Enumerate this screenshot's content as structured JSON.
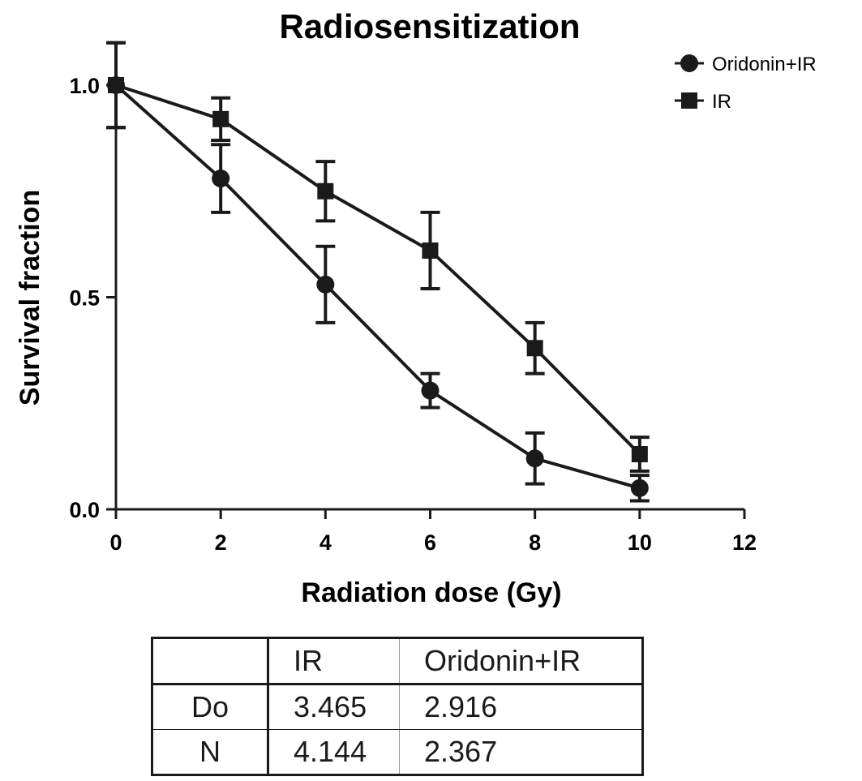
{
  "chart_data": {
    "type": "line",
    "title": "Radiosensitization",
    "xlabel": "Radiation dose (Gy)",
    "ylabel": "Survival fraction",
    "xlim": [
      0,
      12
    ],
    "ylim": [
      0,
      1
    ],
    "x_ticks": [
      "0",
      "2",
      "4",
      "6",
      "8",
      "10",
      "12"
    ],
    "y_ticks": [
      "0.0",
      "0.5",
      "1.0"
    ],
    "x_tick_values": [
      0,
      2,
      4,
      6,
      8,
      10,
      12
    ],
    "y_tick_values": [
      0,
      0.5,
      1
    ],
    "legend_position": "top-right",
    "grid": false,
    "series": [
      {
        "name": "Oridonin+IR",
        "marker": "circle",
        "color": "#1a1a1a",
        "x": [
          0,
          2,
          4,
          6,
          8,
          10
        ],
        "y": [
          1.0,
          0.78,
          0.53,
          0.28,
          0.12,
          0.05
        ],
        "error": [
          0.1,
          0.08,
          0.09,
          0.04,
          0.06,
          0.03
        ]
      },
      {
        "name": "IR",
        "marker": "square",
        "color": "#1a1a1a",
        "x": [
          0,
          2,
          4,
          6,
          8,
          10
        ],
        "y": [
          1.0,
          0.92,
          0.75,
          0.61,
          0.38,
          0.13
        ],
        "error": [
          0.1,
          0.05,
          0.07,
          0.09,
          0.06,
          0.04
        ]
      }
    ]
  },
  "table": {
    "header": [
      "",
      "IR",
      "Oridonin+IR"
    ],
    "rows": [
      [
        "Do",
        "3.465",
        "2.916"
      ],
      [
        "N",
        "4.144",
        "2.367"
      ]
    ]
  }
}
